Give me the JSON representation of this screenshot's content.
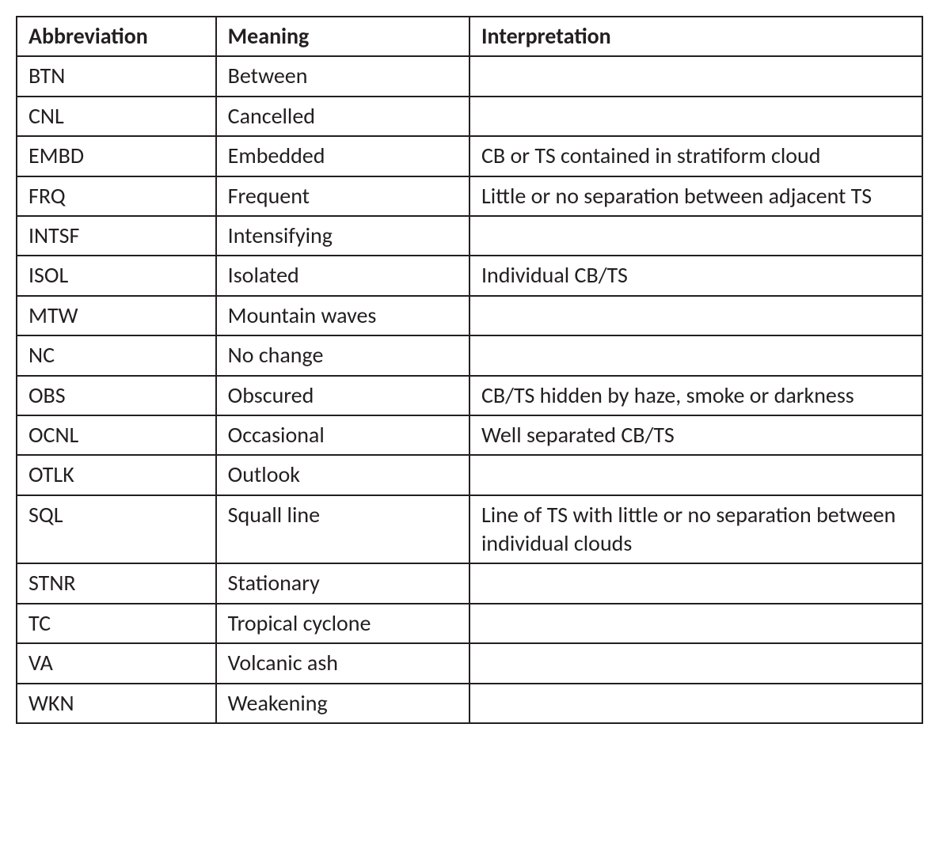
{
  "table": {
    "background_color": "#ffffff",
    "border_color": "#231f20",
    "text_color": "#231f20",
    "font_family": "Segoe UI, Myriad Pro, Calibri, sans-serif",
    "header_fontsize": 28,
    "cell_fontsize": 28,
    "header_fontweight": 700,
    "cell_fontweight": 400,
    "border_width": 2,
    "column_widths_pct": [
      22,
      28,
      50
    ],
    "columns": [
      "Abbreviation",
      "Meaning",
      "Interpretation"
    ],
    "rows": [
      {
        "abbr": "BTN",
        "meaning": "Between",
        "interpretation": ""
      },
      {
        "abbr": "CNL",
        "meaning": "Cancelled",
        "interpretation": ""
      },
      {
        "abbr": "EMBD",
        "meaning": "Embedded",
        "interpretation": "CB or TS contained in stratiform cloud"
      },
      {
        "abbr": "FRQ",
        "meaning": "Frequent",
        "interpretation": "Little or no separation between adjacent TS"
      },
      {
        "abbr": "INTSF",
        "meaning": "Intensifying",
        "interpretation": ""
      },
      {
        "abbr": "ISOL",
        "meaning": "Isolated",
        "interpretation": "Individual CB/TS"
      },
      {
        "abbr": "MTW",
        "meaning": "Mountain waves",
        "interpretation": ""
      },
      {
        "abbr": "NC",
        "meaning": "No change",
        "interpretation": ""
      },
      {
        "abbr": "OBS",
        "meaning": "Obscured",
        "interpretation": "CB/TS hidden by haze, smoke or darkness"
      },
      {
        "abbr": "OCNL",
        "meaning": "Occasional",
        "interpretation": "Well separated CB/TS"
      },
      {
        "abbr": "OTLK",
        "meaning": "Outlook",
        "interpretation": ""
      },
      {
        "abbr": "SQL",
        "meaning": "Squall line",
        "interpretation": "Line of TS with little or no separation between individual clouds"
      },
      {
        "abbr": "STNR",
        "meaning": "Stationary",
        "interpretation": ""
      },
      {
        "abbr": "TC",
        "meaning": "Tropical cyclone",
        "interpretation": ""
      },
      {
        "abbr": "VA",
        "meaning": "Volcanic ash",
        "interpretation": ""
      },
      {
        "abbr": "WKN",
        "meaning": "Weakening",
        "interpretation": ""
      }
    ]
  }
}
